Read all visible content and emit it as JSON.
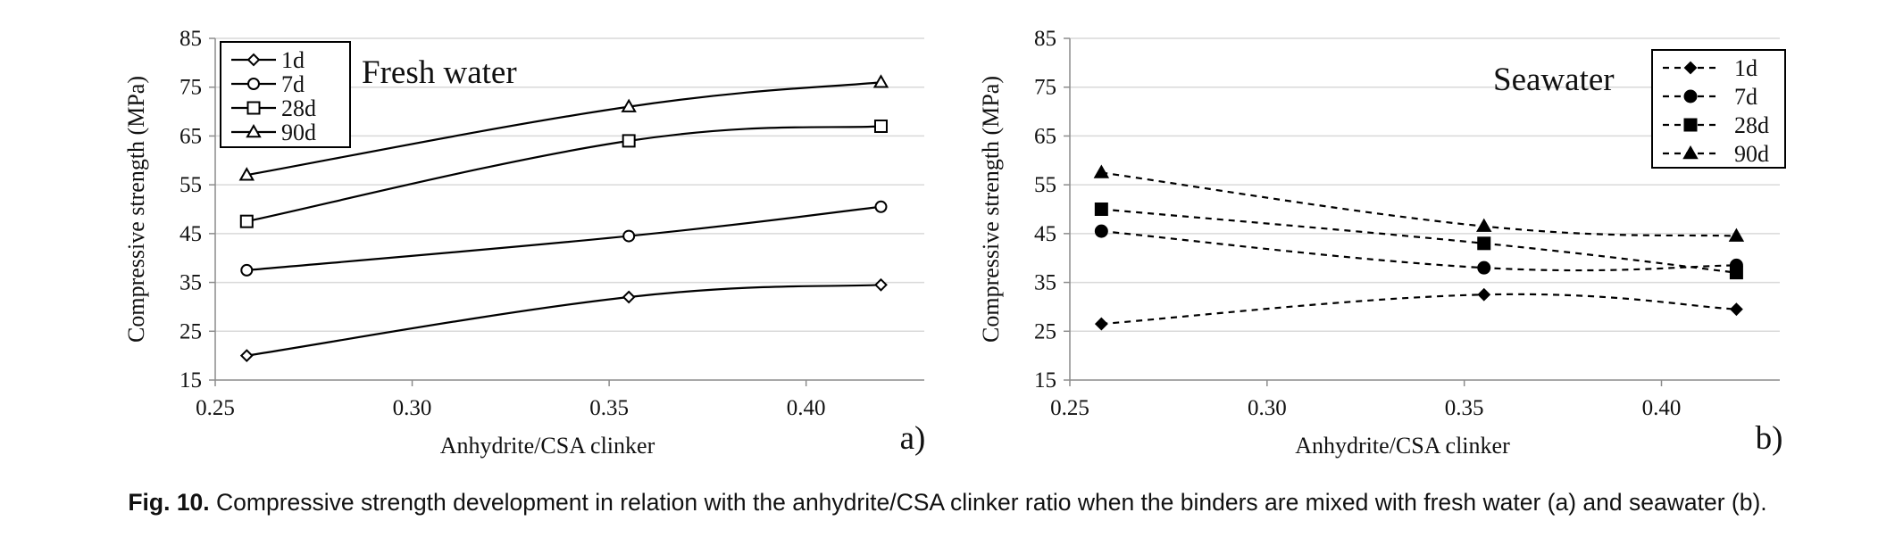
{
  "chart_data": [
    {
      "type": "line",
      "title": "Fresh water",
      "panel_label": "a)",
      "xlabel": "Anhydrite/CSA clinker",
      "ylabel": "Compressive strength (MPa)",
      "xlim": [
        0.25,
        0.43
      ],
      "ylim": [
        15,
        85
      ],
      "xticks": [
        "0.25",
        "0.30",
        "0.35",
        "0.40"
      ],
      "yticks": [
        "15",
        "25",
        "35",
        "45",
        "55",
        "65",
        "75",
        "85"
      ],
      "line_style": "solid",
      "marker_fill": "open",
      "legend_position": "top-left",
      "grid": true,
      "series": [
        {
          "name": "1d",
          "marker": "diamond",
          "x": [
            0.258,
            0.355,
            0.419
          ],
          "y": [
            20,
            32,
            34.5
          ]
        },
        {
          "name": "7d",
          "marker": "circle",
          "x": [
            0.258,
            0.355,
            0.419
          ],
          "y": [
            37.5,
            44.5,
            50.5
          ]
        },
        {
          "name": "28d",
          "marker": "square",
          "x": [
            0.258,
            0.355,
            0.419
          ],
          "y": [
            47.5,
            64,
            67
          ]
        },
        {
          "name": "90d",
          "marker": "triangle",
          "x": [
            0.258,
            0.355,
            0.419
          ],
          "y": [
            57,
            71,
            76
          ]
        }
      ]
    },
    {
      "type": "line",
      "title": "Seawater",
      "panel_label": "b)",
      "xlabel": "Anhydrite/CSA clinker",
      "ylabel": "Compressive strength (MPa)",
      "xlim": [
        0.25,
        0.43
      ],
      "ylim": [
        15,
        85
      ],
      "xticks": [
        "0.25",
        "0.30",
        "0.35",
        "0.40"
      ],
      "yticks": [
        "15",
        "25",
        "35",
        "45",
        "55",
        "65",
        "75",
        "85"
      ],
      "line_style": "dashed",
      "marker_fill": "filled",
      "legend_position": "top-right",
      "grid": true,
      "series": [
        {
          "name": "1d",
          "marker": "diamond",
          "x": [
            0.258,
            0.355,
            0.419
          ],
          "y": [
            26.5,
            32.5,
            29.5
          ]
        },
        {
          "name": "7d",
          "marker": "circle",
          "x": [
            0.258,
            0.355,
            0.419
          ],
          "y": [
            45.5,
            38,
            38.5
          ]
        },
        {
          "name": "28d",
          "marker": "square",
          "x": [
            0.258,
            0.355,
            0.419
          ],
          "y": [
            50,
            43,
            37
          ]
        },
        {
          "name": "90d",
          "marker": "triangle",
          "x": [
            0.258,
            0.355,
            0.419
          ],
          "y": [
            57.5,
            46.5,
            44.5
          ]
        }
      ]
    }
  ],
  "caption": {
    "label": "Fig. 10.",
    "text": "Compressive strength development in relation with the anhydrite/CSA clinker ratio when the binders are mixed with fresh water (a) and seawater (b)."
  },
  "colors": {
    "line": "#000000",
    "grid": "#d9d9d9",
    "axis": "#8c8c8c",
    "text": "#111111"
  }
}
